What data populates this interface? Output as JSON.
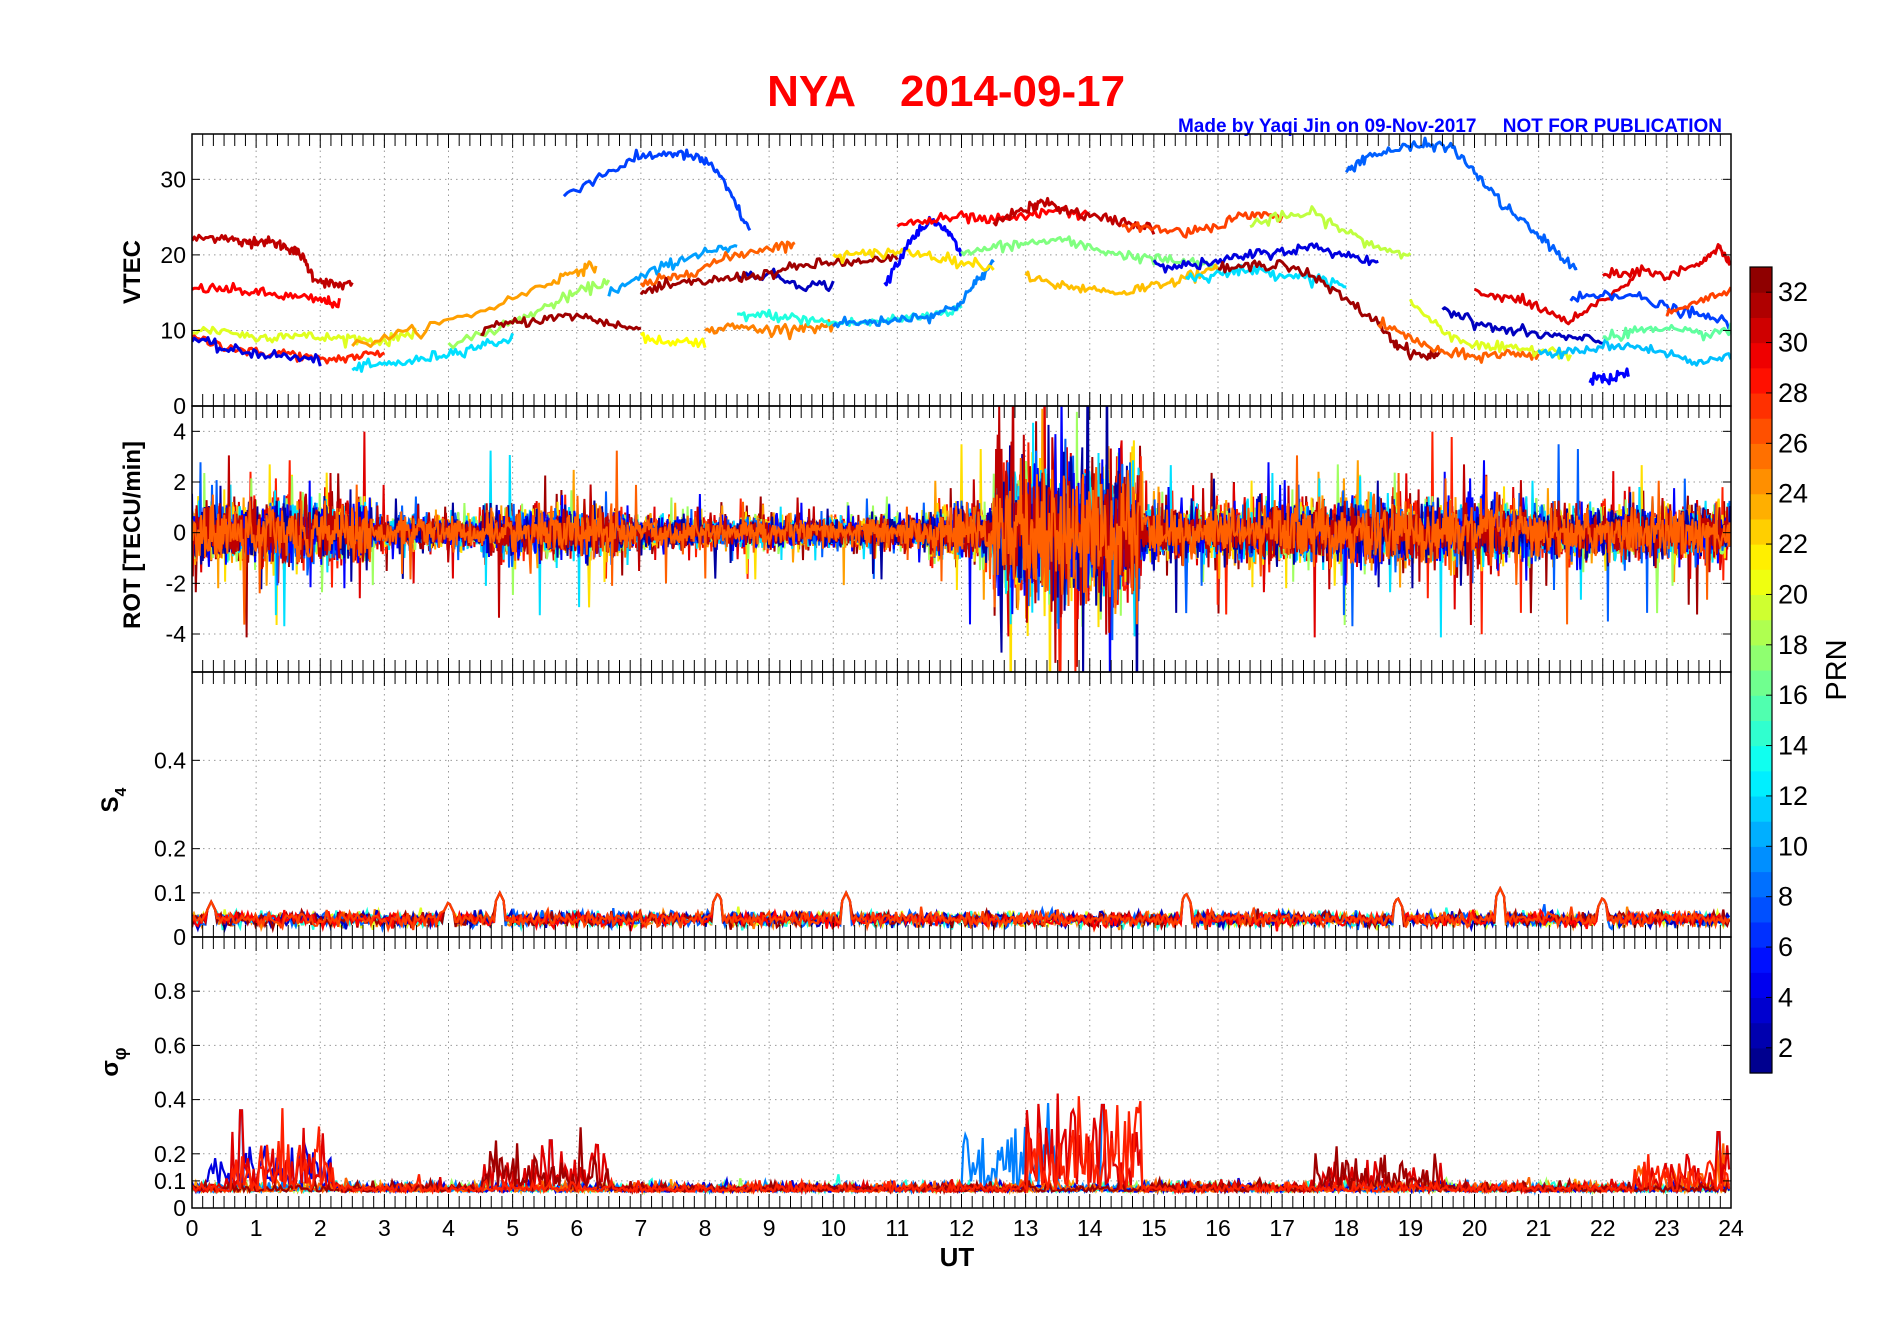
{
  "figure": {
    "station": "NYA",
    "date": "2014-09-17",
    "credit": "Made by Yaqi Jin on 09-Nov-2017     NOT FOR PUBLICATION",
    "colors": {
      "title": "#ff0000",
      "credit": "#0000ff",
      "grid": "#999999"
    }
  },
  "chart_data": [
    {
      "type": "line",
      "panel": "VTEC",
      "ylabel": "VTEC",
      "xlim": [
        0,
        24
      ],
      "ylim": [
        0,
        36
      ],
      "yticks": [
        0,
        10,
        20,
        30
      ],
      "series": [
        {
          "prn": 31,
          "x": [
            0,
            0.5,
            0.8,
            1.0,
            1.3,
            1.5,
            1.7,
            1.9,
            2.2,
            2.5
          ],
          "y": [
            22,
            22.5,
            21.5,
            22,
            21.5,
            21,
            20,
            17,
            16,
            16
          ]
        },
        {
          "prn": 29,
          "x": [
            0,
            0.5,
            1.0,
            1.5,
            2.0,
            2.3
          ],
          "y": [
            15.5,
            15.5,
            15,
            14.5,
            14,
            13.5
          ]
        },
        {
          "prn": 28,
          "x": [
            0,
            0.5,
            1.0,
            1.5,
            2.0,
            2.5,
            3.0
          ],
          "y": [
            9,
            8,
            7,
            7,
            6,
            6.5,
            7
          ]
        },
        {
          "prn": 20,
          "x": [
            0,
            0.5,
            1.0,
            1.5,
            2.0,
            2.5,
            3.0,
            3.5
          ],
          "y": [
            10,
            10,
            9,
            9.5,
            9,
            9,
            8.5,
            10
          ]
        },
        {
          "prn": 4,
          "x": [
            0,
            0.5,
            1.0,
            1.5,
            2.0
          ],
          "y": [
            9,
            7.5,
            7,
            6.5,
            6
          ]
        },
        {
          "prn": 12,
          "x": [
            2.5,
            3.0,
            3.5,
            4.0,
            4.5,
            5.0
          ],
          "y": [
            5,
            5.5,
            6,
            7,
            8,
            9
          ]
        },
        {
          "prn": 24,
          "x": [
            2.5,
            3.5,
            4.5,
            5.5,
            6.0,
            6.3
          ],
          "y": [
            8,
            10,
            12.5,
            16,
            18,
            18.5
          ]
        },
        {
          "prn": 18,
          "x": [
            4.0,
            5.0,
            5.5,
            6.0,
            6.5
          ],
          "y": [
            8,
            11,
            13,
            15,
            16.5
          ]
        },
        {
          "prn": 32,
          "x": [
            4.5,
            5.0,
            5.5,
            6.0,
            6.5,
            7.0
          ],
          "y": [
            10,
            11,
            11.5,
            12,
            11,
            10
          ]
        },
        {
          "prn": 7,
          "x": [
            5.8,
            6.5,
            7.0,
            7.5,
            7.8,
            8.1,
            8.4,
            8.7
          ],
          "y": [
            28,
            31,
            33,
            33.5,
            33,
            32,
            28,
            23
          ]
        },
        {
          "prn": 10,
          "x": [
            6.5,
            7.0,
            7.5,
            8.0,
            8.5
          ],
          "y": [
            15,
            17,
            19,
            20.5,
            20.8
          ]
        },
        {
          "prn": 26,
          "x": [
            7.0,
            7.5,
            8.0,
            8.5,
            9.0,
            9.4
          ],
          "y": [
            16,
            17,
            18.5,
            20,
            21,
            21.5
          ]
        },
        {
          "prn": 21,
          "x": [
            7.0,
            7.5,
            8.0
          ],
          "y": [
            9,
            8.5,
            8.5
          ]
        },
        {
          "prn": 3,
          "x": [
            8.5,
            9.0,
            9.5,
            10.0
          ],
          "y": [
            17,
            17.5,
            16,
            16
          ]
        },
        {
          "prn": 25,
          "x": [
            8.0,
            8.5,
            9.0,
            9.5,
            10.0
          ],
          "y": [
            10,
            10.5,
            10,
            10.5,
            10.5
          ]
        },
        {
          "prn": 32,
          "x": [
            7.0,
            7.5,
            8.0,
            8.5,
            9.0,
            9.5,
            10.0,
            10.5,
            11.0
          ],
          "y": [
            15,
            16,
            16.5,
            17,
            17.5,
            18.5,
            19,
            19,
            19.5
          ]
        },
        {
          "prn": 14,
          "x": [
            8.5,
            9.0,
            9.5,
            10.0,
            10.5,
            11.0,
            11.5,
            12.0
          ],
          "y": [
            12,
            12,
            11.5,
            11,
            11,
            11.5,
            12,
            13
          ]
        },
        {
          "prn": 9,
          "x": [
            10.0,
            10.5,
            11.0,
            11.5,
            11.9,
            12.2,
            12.5
          ],
          "y": [
            11,
            11,
            11.5,
            12,
            13,
            16,
            19
          ]
        },
        {
          "prn": 22,
          "x": [
            10.0,
            10.5,
            11.0,
            11.5,
            12.0,
            12.5
          ],
          "y": [
            20,
            20,
            20.5,
            20,
            19,
            18.5
          ]
        },
        {
          "prn": 5,
          "x": [
            10.8,
            11.2,
            11.5,
            11.8,
            12.0
          ],
          "y": [
            16,
            22,
            24.5,
            23,
            20
          ]
        },
        {
          "prn": 29,
          "x": [
            11.0,
            11.5,
            12.0,
            12.5,
            13.0,
            13.5,
            14.0
          ],
          "y": [
            24,
            24.5,
            25,
            24.5,
            25,
            26,
            25
          ]
        },
        {
          "prn": 31,
          "x": [
            12.5,
            13.0,
            13.3,
            13.6,
            14.0,
            14.5,
            15.0
          ],
          "y": [
            24.5,
            26,
            27,
            26,
            25,
            24.5,
            23.5
          ]
        },
        {
          "prn": 17,
          "x": [
            12.0,
            12.5,
            13.0,
            13.5,
            14.0,
            14.5,
            15.0,
            15.5,
            16.0
          ],
          "y": [
            20,
            21,
            21.5,
            22,
            21,
            20,
            19.5,
            19,
            18.5
          ]
        },
        {
          "prn": 23,
          "x": [
            13.0,
            13.5,
            14.0,
            14.5,
            15.0,
            15.5,
            16.0
          ],
          "y": [
            17,
            16,
            15.5,
            15,
            16,
            17,
            18
          ]
        },
        {
          "prn": 27,
          "x": [
            14.5,
            15.0,
            15.5,
            16.0,
            16.5,
            17.0
          ],
          "y": [
            24,
            23.5,
            23,
            24,
            25.5,
            25
          ]
        },
        {
          "prn": 19,
          "x": [
            16.5,
            17.0,
            17.5,
            18.0,
            18.5,
            19.0
          ],
          "y": [
            24,
            25,
            25.5,
            23,
            21,
            20
          ]
        },
        {
          "prn": 4,
          "x": [
            15.0,
            15.5,
            16.0,
            16.5,
            17.0,
            17.5,
            18.0,
            18.5
          ],
          "y": [
            19,
            18.5,
            19,
            20,
            20.5,
            21,
            20,
            19
          ]
        },
        {
          "prn": 12,
          "x": [
            15.5,
            16.0,
            16.5,
            17.0,
            17.5,
            18.0
          ],
          "y": [
            17,
            17.5,
            18,
            17.5,
            17,
            16
          ]
        },
        {
          "prn": 32,
          "x": [
            16.0,
            16.5,
            17.0,
            17.5,
            18.0,
            18.5,
            18.8,
            19.2,
            19.5
          ],
          "y": [
            18,
            18.5,
            19,
            17,
            14,
            11,
            8,
            6.5,
            7
          ]
        },
        {
          "prn": 8,
          "x": [
            18.0,
            18.3,
            18.8,
            19.2,
            19.6,
            20.0,
            20.4,
            20.8,
            21.2,
            21.6
          ],
          "y": [
            31,
            33,
            34,
            34.5,
            34.5,
            31,
            27,
            24,
            21,
            18
          ]
        },
        {
          "prn": 26,
          "x": [
            18.5,
            19.0,
            19.5,
            20.0,
            20.5,
            21.0
          ],
          "y": [
            11,
            9,
            7,
            6.5,
            7,
            6.5
          ]
        },
        {
          "prn": 20,
          "x": [
            19.0,
            19.5,
            20.0,
            20.5,
            21.0,
            21.5
          ],
          "y": [
            14,
            10,
            8,
            7.5,
            7.5,
            7
          ]
        },
        {
          "prn": 3,
          "x": [
            19.5,
            20.0,
            20.5,
            21.0,
            21.5,
            22.0
          ],
          "y": [
            13,
            11,
            10,
            9.5,
            9,
            8.5
          ]
        },
        {
          "prn": 30,
          "x": [
            20.0,
            20.5,
            21.0,
            21.5,
            22.0,
            22.5
          ],
          "y": [
            15,
            14.5,
            13,
            11,
            14,
            17
          ]
        },
        {
          "prn": 7,
          "x": [
            21.5,
            22.0,
            22.5,
            23.0,
            23.5,
            24.0
          ],
          "y": [
            14,
            15,
            14.5,
            13,
            12,
            11
          ]
        },
        {
          "prn": 30,
          "x": [
            22.0,
            22.5,
            23.0,
            23.5,
            23.8,
            24.0
          ],
          "y": [
            17,
            18,
            17,
            19,
            21,
            19
          ]
        },
        {
          "prn": 5,
          "x": [
            21.8,
            22.1,
            22.4
          ],
          "y": [
            4,
            3.5,
            4.5
          ]
        },
        {
          "prn": 11,
          "x": [
            21.0,
            21.5,
            22.0,
            22.5,
            23.0,
            23.5,
            24.0
          ],
          "y": [
            7,
            7,
            8,
            8,
            7,
            5.5,
            7
          ]
        },
        {
          "prn": 16,
          "x": [
            22.0,
            22.5,
            23.0,
            23.5,
            24.0
          ],
          "y": [
            9,
            10,
            10,
            9.5,
            10
          ]
        },
        {
          "prn": 27,
          "x": [
            23.0,
            23.5,
            24.0
          ],
          "y": [
            12,
            14,
            15
          ]
        }
      ]
    },
    {
      "type": "line",
      "panel": "ROT",
      "ylabel": "ROT [TECU/min]",
      "xlim": [
        0,
        24
      ],
      "ylim": [
        -5.5,
        5
      ],
      "yticks": [
        -4,
        -2,
        0,
        2,
        4
      ],
      "activity": [
        {
          "t0": 0,
          "t1": 2.8,
          "amp": 1.6
        },
        {
          "t0": 2.8,
          "t1": 4.5,
          "amp": 0.8
        },
        {
          "t0": 4.5,
          "t1": 6.8,
          "amp": 1.3
        },
        {
          "t0": 6.8,
          "t1": 11.5,
          "amp": 0.8
        },
        {
          "t0": 11.5,
          "t1": 12.5,
          "amp": 1.4
        },
        {
          "t0": 12.5,
          "t1": 14.8,
          "amp": 3.8
        },
        {
          "t0": 14.8,
          "t1": 16.5,
          "amp": 1.4
        },
        {
          "t0": 16.5,
          "t1": 20.5,
          "amp": 1.6
        },
        {
          "t0": 20.5,
          "t1": 24,
          "amp": 1.4
        }
      ]
    },
    {
      "type": "line",
      "panel": "S4",
      "ylabel": "S4",
      "xlim": [
        0,
        24
      ],
      "ylim": [
        0,
        0.6
      ],
      "yticks": [
        0,
        0.1,
        0.2,
        0.4
      ],
      "baseline": 0.04,
      "spikes": [
        {
          "x": 0.3,
          "y": 0.08
        },
        {
          "x": 4.0,
          "y": 0.08
        },
        {
          "x": 4.8,
          "y": 0.1
        },
        {
          "x": 8.2,
          "y": 0.1
        },
        {
          "x": 10.2,
          "y": 0.1
        },
        {
          "x": 15.5,
          "y": 0.1
        },
        {
          "x": 18.8,
          "y": 0.09
        },
        {
          "x": 20.4,
          "y": 0.11
        },
        {
          "x": 22.0,
          "y": 0.09
        }
      ]
    },
    {
      "type": "line",
      "panel": "sigma_phi",
      "ylabel": "σφ",
      "xlabel": "UT",
      "xlim": [
        0,
        24
      ],
      "ylim": [
        0,
        1
      ],
      "yticks": [
        0,
        0.1,
        0.2,
        0.4,
        0.6,
        0.8
      ],
      "xticks": [
        0,
        1,
        2,
        3,
        4,
        5,
        6,
        7,
        8,
        9,
        10,
        11,
        12,
        13,
        14,
        15,
        16,
        17,
        18,
        19,
        20,
        21,
        22,
        23,
        24
      ],
      "baseline": 0.06,
      "bursts": [
        {
          "t0": 0.2,
          "t1": 2.2,
          "amp": 0.15,
          "prn": 6
        },
        {
          "t0": 0.6,
          "t1": 2.2,
          "amp": 0.17,
          "prn": 29
        },
        {
          "t0": 4.5,
          "t1": 6.5,
          "amp": 0.12,
          "prn": 31
        },
        {
          "t0": 12.0,
          "t1": 13.5,
          "amp": 0.22,
          "prn": 8
        },
        {
          "t0": 13.0,
          "t1": 14.8,
          "amp": 0.28,
          "prn": 29
        },
        {
          "t0": 17.5,
          "t1": 19.5,
          "amp": 0.1,
          "prn": 32
        },
        {
          "t0": 22.5,
          "t1": 24.0,
          "amp": 0.1,
          "prn": 28
        }
      ],
      "spikes": [
        {
          "x": 0.78,
          "y": 0.36
        },
        {
          "x": 5.6,
          "y": 0.25
        },
        {
          "x": 14.2,
          "y": 0.38
        },
        {
          "x": 23.8,
          "y": 0.28
        }
      ]
    }
  ],
  "colorbar": {
    "label": "PRN",
    "range": [
      1,
      33
    ],
    "ticks": [
      2,
      4,
      6,
      8,
      10,
      12,
      14,
      16,
      18,
      20,
      22,
      24,
      26,
      28,
      30,
      32
    ]
  }
}
